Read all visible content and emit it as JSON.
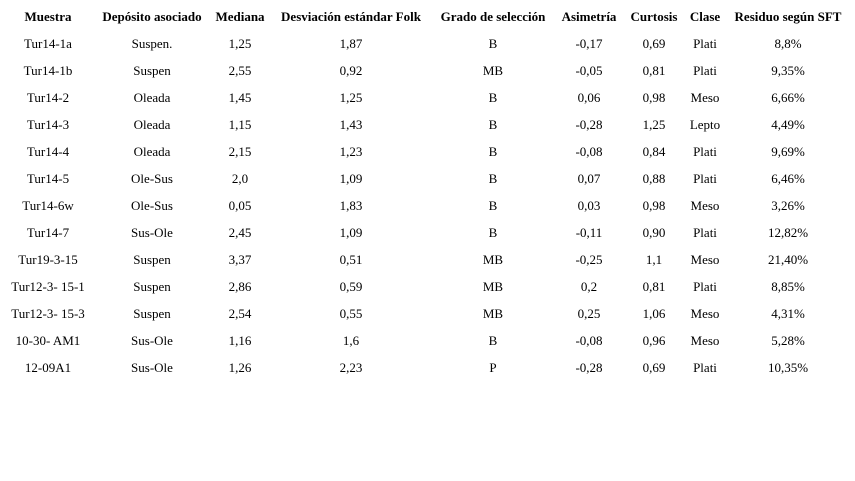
{
  "table": {
    "header": [
      "Muestra",
      "Depósito asociado",
      "Mediana",
      "Desviación estándar Folk",
      "Grado de selección",
      "Asimetría",
      "Curtosis",
      "Clase",
      "Residuo según SFT"
    ],
    "rows": [
      [
        "Tur14-1a",
        "Suspen.",
        "1,25",
        "1,87",
        "B",
        "-0,17",
        "0,69",
        "Plati",
        "8,8%"
      ],
      [
        "Tur14-1b",
        "Suspen",
        "2,55",
        "0,92",
        "MB",
        "-0,05",
        "0,81",
        "Plati",
        "9,35%"
      ],
      [
        "Tur14-2",
        "Oleada",
        "1,45",
        "1,25",
        "B",
        "0,06",
        "0,98",
        "Meso",
        "6,66%"
      ],
      [
        "Tur14-3",
        "Oleada",
        "1,15",
        "1,43",
        "B",
        "-0,28",
        "1,25",
        "Lepto",
        "4,49%"
      ],
      [
        "Tur14-4",
        "Oleada",
        "2,15",
        "1,23",
        "B",
        "-0,08",
        "0,84",
        "Plati",
        "9,69%"
      ],
      [
        "Tur14-5",
        "Ole-Sus",
        "2,0",
        "1,09",
        "B",
        "0,07",
        "0,88",
        "Plati",
        "6,46%"
      ],
      [
        "Tur14-6w",
        "Ole-Sus",
        "0,05",
        "1,83",
        "B",
        "0,03",
        "0,98",
        "Meso",
        "3,26%"
      ],
      [
        "Tur14-7",
        "Sus-Ole",
        "2,45",
        "1,09",
        "B",
        "-0,11",
        "0,90",
        "Plati",
        "12,82%"
      ],
      [
        "Tur19-3-15",
        "Suspen",
        "3,37",
        "0,51",
        "MB",
        "-0,25",
        "1,1",
        "Meso",
        "21,40%"
      ],
      [
        "Tur12-3- 15-1",
        "Suspen",
        "2,86",
        "0,59",
        "MB",
        "0,2",
        "0,81",
        "Plati",
        "8,85%"
      ],
      [
        "Tur12-3- 15-3",
        "Suspen",
        "2,54",
        "0,55",
        "MB",
        "0,25",
        "1,06",
        "Meso",
        "4,31%"
      ],
      [
        "10-30- AM1",
        "Sus-Ole",
        "1,16",
        "1,6",
        "B",
        "-0,08",
        "0,96",
        "Meso",
        "5,28%"
      ],
      [
        "12-09A1",
        "Sus-Ole",
        "1,26",
        "2,23",
        "P",
        "-0,28",
        "0,69",
        "Plati",
        "10,35%"
      ]
    ]
  }
}
